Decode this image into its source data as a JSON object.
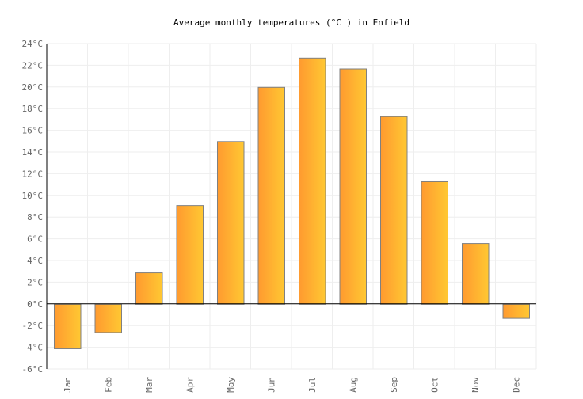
{
  "chart_data": {
    "type": "bar",
    "title": "Average monthly temperatures (°C ) in Enfield",
    "xlabel": "",
    "ylabel": "",
    "categories": [
      "Jan",
      "Feb",
      "Mar",
      "Apr",
      "May",
      "Jun",
      "Jul",
      "Aug",
      "Sep",
      "Oct",
      "Nov",
      "Dec"
    ],
    "values": [
      -4.1,
      -2.6,
      2.9,
      9.1,
      15.0,
      20.0,
      22.7,
      21.7,
      17.3,
      11.3,
      5.6,
      -1.3
    ],
    "ylim": [
      -6,
      24
    ],
    "yticks": [
      -6,
      -4,
      -2,
      0,
      2,
      4,
      6,
      8,
      10,
      12,
      14,
      16,
      18,
      20,
      22,
      24
    ],
    "ytick_suffix": "°C",
    "grid": true,
    "legend": "none",
    "colors": {
      "bar_start": "#ff9a30",
      "bar_end": "#ffc832",
      "bar_stroke": "#808080",
      "grid": "#eeeeee",
      "axis": "#000000",
      "tick_text": "#666666"
    }
  }
}
